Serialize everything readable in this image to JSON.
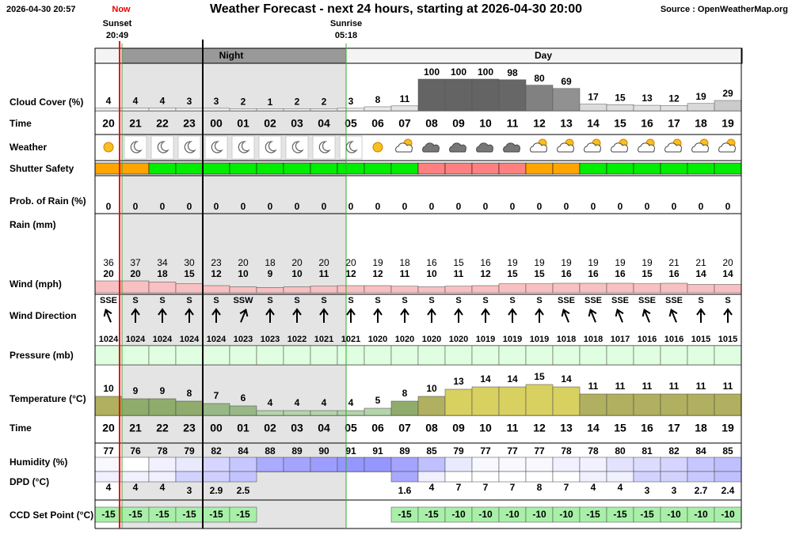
{
  "header": {
    "timestamp": "2026-04-30 20:57",
    "now": "Now",
    "title": "Weather Forecast - next 24 hours, starting at 2026-04-30 20:00",
    "source": "Source : OpenWeatherMap.org",
    "sunset": "Sunset",
    "sunset_time": "20:49",
    "sunrise": "Sunrise",
    "sunrise_time": "05:18",
    "night": "Night",
    "day": "Day"
  },
  "row_labels": {
    "cloud": "Cloud Cover (%)",
    "time": "Time",
    "weather": "Weather",
    "shutter": "Shutter Safety",
    "rain_prob": "Prob. of Rain (%)",
    "rain": "Rain (mm)",
    "wind": "Wind (mph)",
    "wind_dir": "Wind Direction",
    "pressure": "Pressure (mb)",
    "temperature": "Temperature (°C)",
    "time2": "Time",
    "humidity": "Humidity (%)",
    "dpd": "DPD (°C)",
    "ccd": "CCD Set Point (°C)"
  },
  "hours": [
    "20",
    "21",
    "22",
    "23",
    "00",
    "01",
    "02",
    "03",
    "04",
    "05",
    "06",
    "07",
    "08",
    "09",
    "10",
    "11",
    "12",
    "13",
    "14",
    "15",
    "16",
    "17",
    "18",
    "19"
  ],
  "cloud_cover": [
    4,
    4,
    4,
    3,
    3,
    2,
    1,
    2,
    2,
    3,
    8,
    11,
    100,
    100,
    100,
    98,
    80,
    69,
    17,
    15,
    13,
    12,
    19,
    29
  ],
  "shutter_colors": [
    "#ffa500",
    "#ffa500",
    "#00ee00",
    "#00ee00",
    "#00ee00",
    "#00ee00",
    "#00ee00",
    "#00ee00",
    "#00ee00",
    "#00ee00",
    "#00ee00",
    "#00ee00",
    "#ff8080",
    "#ff8080",
    "#ff8080",
    "#ff8080",
    "#ffa500",
    "#ffa500",
    "#00ee00",
    "#00ee00",
    "#00ee00",
    "#00ee00",
    "#00ee00",
    "#00ee00"
  ],
  "rain_prob": [
    0,
    0,
    0,
    0,
    0,
    0,
    0,
    0,
    0,
    0,
    0,
    0,
    0,
    0,
    0,
    0,
    0,
    0,
    0,
    0,
    0,
    0,
    0,
    0
  ],
  "wind_gust": [
    36,
    37,
    34,
    30,
    23,
    20,
    18,
    20,
    20,
    20,
    19,
    18,
    16,
    15,
    16,
    19,
    19,
    19,
    19,
    19,
    19,
    21,
    21,
    20
  ],
  "wind_speed": [
    20,
    20,
    18,
    15,
    12,
    10,
    9,
    10,
    11,
    12,
    12,
    11,
    10,
    11,
    12,
    15,
    15,
    16,
    16,
    16,
    15,
    16,
    14,
    14
  ],
  "wind_dir": [
    "SSE",
    "S",
    "S",
    "S",
    "S",
    "SSW",
    "S",
    "S",
    "S",
    "S",
    "S",
    "S",
    "S",
    "S",
    "S",
    "S",
    "S",
    "SSE",
    "SSE",
    "SSE",
    "SSE",
    "SSE",
    "S",
    "S"
  ],
  "pressure": [
    1024,
    1024,
    1024,
    1024,
    1024,
    1023,
    1023,
    1022,
    1021,
    1021,
    1020,
    1020,
    1020,
    1020,
    1019,
    1019,
    1019,
    1018,
    1018,
    1017,
    1016,
    1016,
    1015,
    1015
  ],
  "temperature": [
    10,
    9,
    9,
    8,
    7,
    6,
    4,
    4,
    4,
    4,
    5,
    8,
    10,
    13,
    14,
    14,
    15,
    14,
    11,
    11,
    11,
    11,
    11,
    11
  ],
  "humidity": [
    77,
    76,
    78,
    79,
    82,
    84,
    88,
    89,
    90,
    91,
    91,
    89,
    85,
    79,
    77,
    77,
    77,
    78,
    78,
    80,
    81,
    82,
    84,
    85
  ],
  "dpd": [
    4,
    4,
    4,
    3,
    2.9,
    2.5,
    null,
    null,
    null,
    null,
    null,
    1.6,
    4,
    7,
    7,
    7,
    8,
    7,
    4,
    4,
    3,
    3,
    2.7,
    2.4
  ],
  "ccd": [
    -15,
    -15,
    -15,
    -15,
    -15,
    -15,
    null,
    null,
    null,
    null,
    null,
    -15,
    -15,
    -10,
    -10,
    -10,
    -10,
    -10,
    -15,
    -15,
    -15,
    -10,
    -10,
    -10
  ]
}
